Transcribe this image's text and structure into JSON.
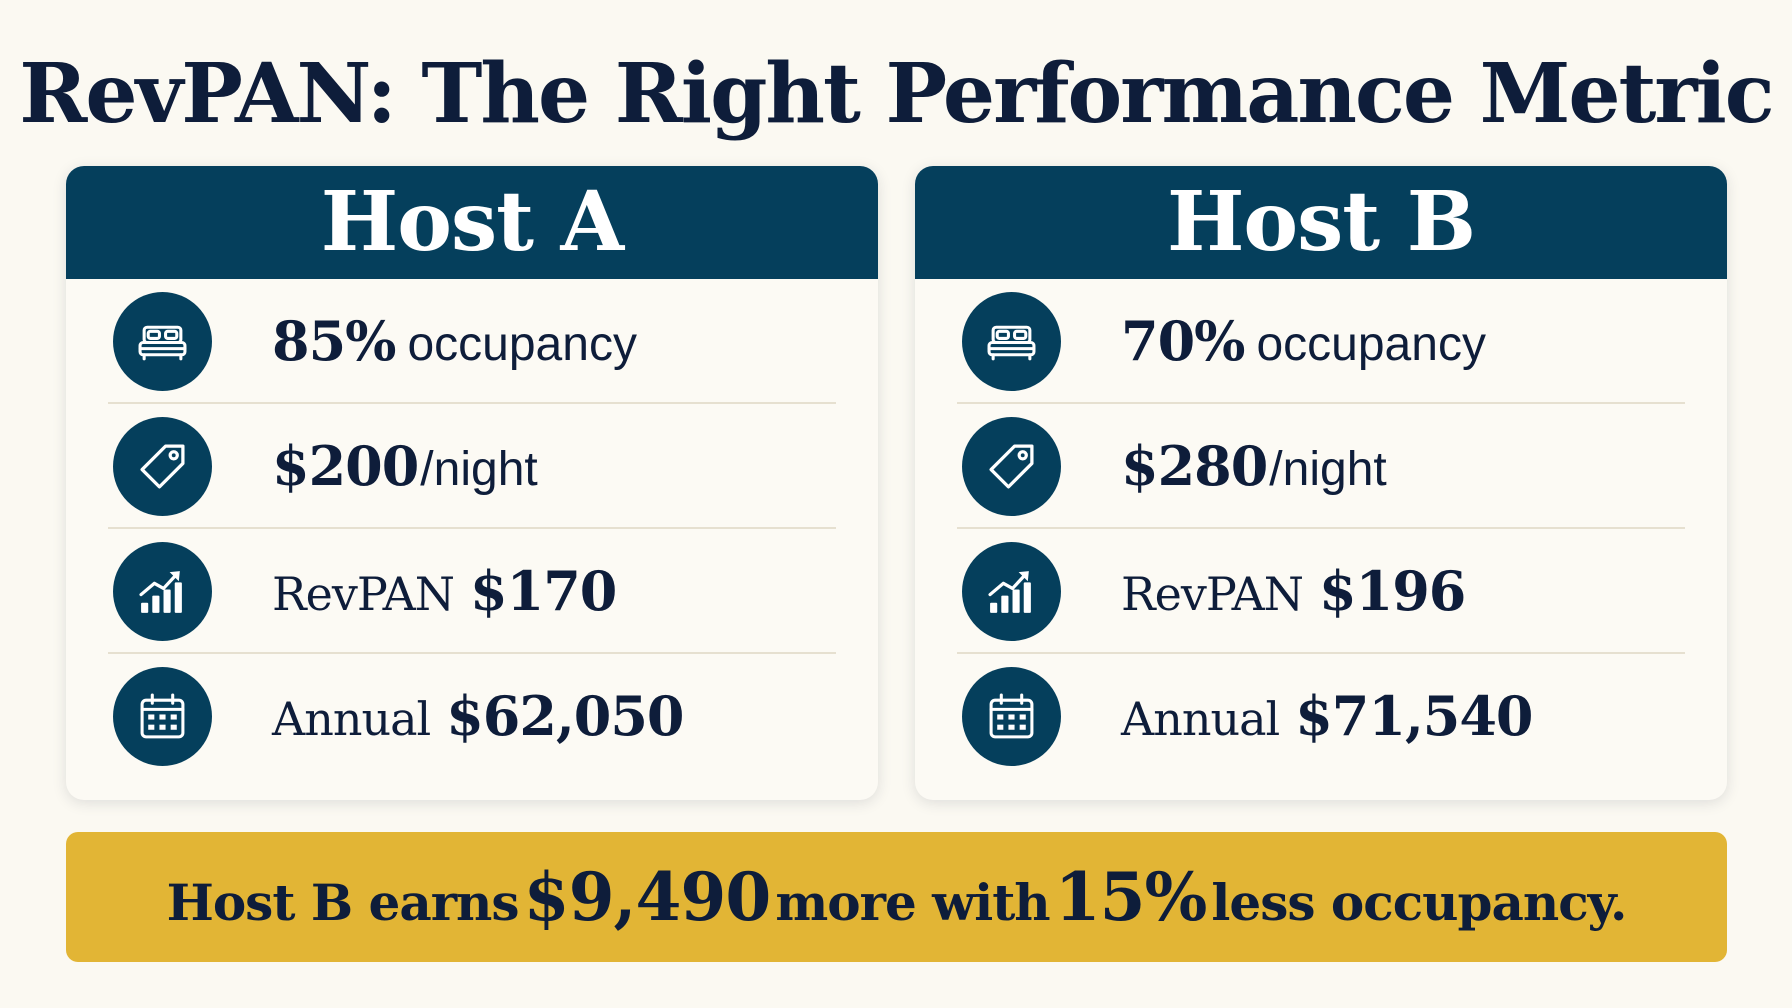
{
  "title": "RevPAN: The Right Performance Metric",
  "hosts": [
    {
      "name": "Host A",
      "occupancy_value": "85%",
      "occupancy_label": "occupancy",
      "rate_value": "$200",
      "rate_unit": "/night",
      "revpan_label": "RevPAN",
      "revpan_value": "$170",
      "annual_label": "Annual",
      "annual_value": "$62,050"
    },
    {
      "name": "Host B",
      "occupancy_value": "70%",
      "occupancy_label": "occupancy",
      "rate_value": "$280",
      "rate_unit": "/night",
      "revpan_label": "RevPAN",
      "revpan_value": "$196",
      "annual_label": "Annual",
      "annual_value": "$71,540"
    }
  ],
  "icons": {
    "occupancy": "bed-icon",
    "rate": "price-tag-icon",
    "revpan": "growth-chart-icon",
    "annual": "calendar-icon"
  },
  "summary": {
    "part1": "Host B earns",
    "amount": "$9,490",
    "part2": "more with",
    "percent": "15%",
    "part3": "less occupancy."
  },
  "colors": {
    "navy": "#053f5c",
    "text": "#0e1d3a",
    "gold": "#e2b535",
    "background": "#fbf9f2"
  }
}
